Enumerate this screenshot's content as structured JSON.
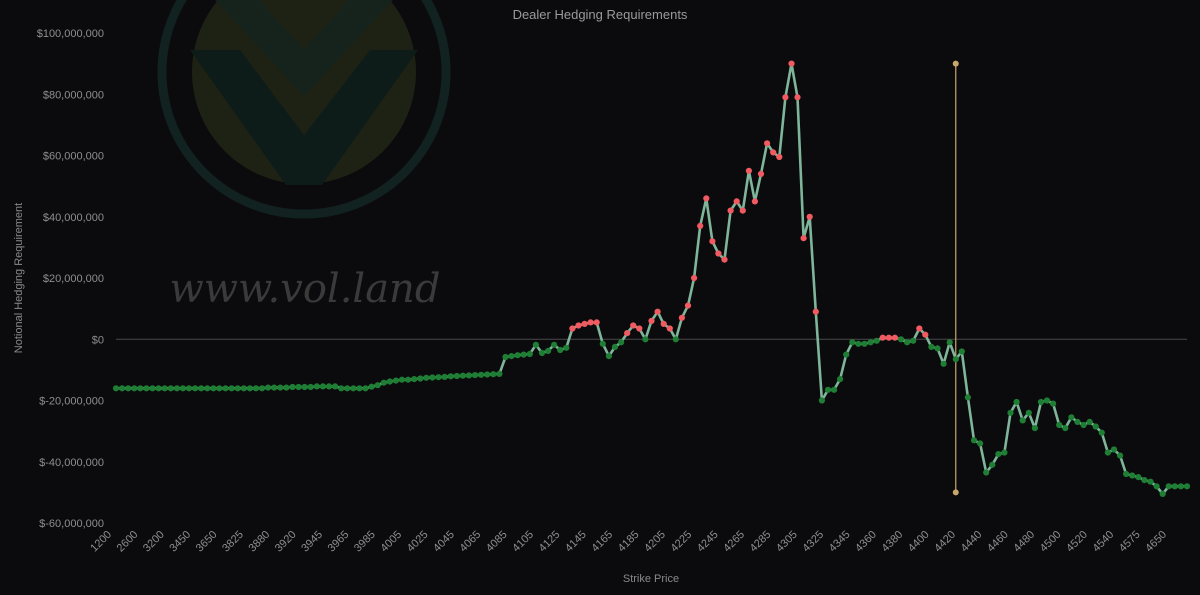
{
  "chart_data": {
    "type": "line",
    "title": "Dealer Hedging Requirements",
    "xlabel": "Strike Price",
    "ylabel": "Notional Hedging Requirement",
    "watermark": "www.vol.land",
    "ylim": [
      -60000000,
      100000000
    ],
    "y_ticks": [
      100000000,
      80000000,
      60000000,
      40000000,
      20000000,
      0,
      -20000000,
      -40000000,
      -60000000
    ],
    "y_tick_labels": [
      "$100,000,000",
      "$80,000,000",
      "$60,000,000",
      "$40,000,000",
      "$20,000,000",
      "$0",
      "$-20,000,000",
      "$-40,000,000",
      "$-60,000,000"
    ],
    "x_tick_labels": [
      "1200",
      "2600",
      "3200",
      "3450",
      "3650",
      "3825",
      "3880",
      "3920",
      "3945",
      "3965",
      "3985",
      "4005",
      "4025",
      "4045",
      "4065",
      "4085",
      "4105",
      "4125",
      "4145",
      "4165",
      "4185",
      "4205",
      "4225",
      "4245",
      "4265",
      "4285",
      "4305",
      "4325",
      "4345",
      "4360",
      "4380",
      "4400",
      "4420",
      "4440",
      "4460",
      "4480",
      "4500",
      "4520",
      "4540",
      "4575",
      "4650"
    ],
    "current_price_marker": {
      "x_index": 138,
      "y_range": [
        -50000000,
        90000000
      ]
    },
    "colors": {
      "line": "#7fb59a",
      "positive_point": "#f05a60",
      "negative_point": "#1e7e34",
      "zero_line": "#4a4a4a",
      "marker": "#c8a86a"
    },
    "series": [
      {
        "values": [
          -16000000,
          -16000000,
          -16000000,
          -16000000,
          -16000000,
          -16000000,
          -16000000,
          -16000000,
          -16000000,
          -16000000,
          -16000000,
          -16000000,
          -16000000,
          -16000000,
          -16000000,
          -16000000,
          -16000000,
          -16000000,
          -16000000,
          -16000000,
          -16000000,
          -16000000,
          -16000000,
          -16000000,
          -16000000,
          -15800000,
          -15800000,
          -15800000,
          -15800000,
          -15600000,
          -15600000,
          -15600000,
          -15600000,
          -15400000,
          -15400000,
          -15400000,
          -15400000,
          -16000000,
          -16000000,
          -16000000,
          -16000000,
          -16000000,
          -15500000,
          -15000000,
          -14200000,
          -13800000,
          -13500000,
          -13200000,
          -13200000,
          -13000000,
          -12800000,
          -12600000,
          -12500000,
          -12400000,
          -12300000,
          -12100000,
          -12000000,
          -11900000,
          -11800000,
          -11700000,
          -11600000,
          -11500000,
          -11400000,
          -11300000,
          -5800000,
          -5500000,
          -5200000,
          -5000000,
          -4800000,
          -1800000,
          -4500000,
          -3800000,
          -1800000,
          -3500000,
          -2800000,
          3500000,
          4500000,
          5000000,
          5500000,
          5500000,
          -1500000,
          -5500000,
          -2500000,
          -1000000,
          2000000,
          4500000,
          3500000,
          0,
          6000000,
          9000000,
          5000000,
          3500000,
          0,
          7000000,
          11000000,
          20000000,
          37000000,
          46000000,
          32000000,
          28000000,
          26000000,
          42000000,
          45000000,
          42000000,
          55000000,
          45000000,
          54000000,
          64000000,
          61000000,
          59500000,
          79000000,
          90000000,
          79000000,
          33000000,
          40000000,
          9000000,
          -20000000,
          -16500000,
          -16500000,
          -13000000,
          -5000000,
          -1000000,
          -1500000,
          -1500000,
          -1000000,
          -500000,
          500000,
          500000,
          500000,
          0,
          -1000000,
          -500000,
          3500000,
          1500000,
          -2500000,
          -3000000,
          -8000000,
          -1000000,
          -6500000,
          -4000000,
          -19000000,
          -33000000,
          -34000000,
          -43500000,
          -41000000,
          -37500000,
          -37000000,
          -24000000,
          -20500000,
          -26500000,
          -24000000,
          -29000000,
          -20500000,
          -20000000,
          -21000000,
          -28000000,
          -29000000,
          -25500000,
          -27000000,
          -28000000,
          -27000000,
          -28500000,
          -30500000,
          -37000000,
          -36000000,
          -38000000,
          -44000000,
          -44500000,
          -45000000,
          -46000000,
          -46500000,
          -48000000,
          -50500000,
          -48000000,
          -48000000,
          -48000000,
          -48000000
        ]
      }
    ]
  }
}
